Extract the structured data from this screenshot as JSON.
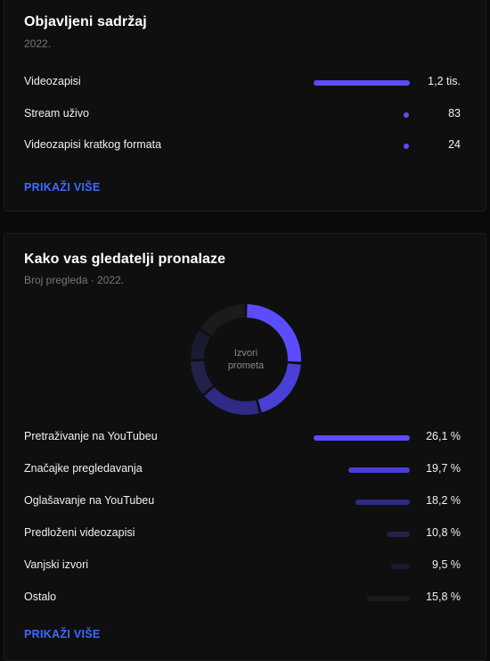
{
  "content_card": {
    "title": "Objavljeni sadržaj",
    "subtitle": "2022.",
    "items": [
      {
        "label": "Videozapisi",
        "value": "1,2 tis.",
        "fraction": 1.0
      },
      {
        "label": "Stream uživo",
        "value": "83",
        "fraction": 0.069
      },
      {
        "label": "Videozapisi kratkog formata",
        "value": "24",
        "fraction": 0.02
      }
    ],
    "show_more": "PRIKAŽI VIŠE"
  },
  "traffic_card": {
    "title": "Kako vas gledatelji pronalaze",
    "subtitle": "Broj pregleda · 2022.",
    "donut_center_line1": "Izvori",
    "donut_center_line2": "prometa",
    "items": [
      {
        "label": "Pretraživanje na YouTubeu",
        "value": "26,1 %",
        "percent": 26.1,
        "color": "#5b4cff"
      },
      {
        "label": "Značajke pregledavanja",
        "value": "19,7 %",
        "percent": 19.7,
        "color": "#4a3fd6"
      },
      {
        "label": "Oglašavanje na YouTubeu",
        "value": "18,2 %",
        "percent": 18.2,
        "color": "#2e2a86"
      },
      {
        "label": "Predloženi videozapisi",
        "value": "10,8 %",
        "percent": 10.8,
        "color": "#22214a"
      },
      {
        "label": "Vanjski izvori",
        "value": "9,5 %",
        "percent": 9.5,
        "color": "#1a1a30"
      },
      {
        "label": "Ostalo",
        "value": "15,8 %",
        "percent": 15.8,
        "color": "#1b1b1b"
      }
    ],
    "show_more": "PRIKAŽI VIŠE"
  },
  "chart_data": {
    "type": "pie",
    "categories": [
      "Pretraživanje na YouTubeu",
      "Značajke pregledavanja",
      "Oglašavanje na YouTubeu",
      "Predloženi videozapisi",
      "Vanjski izvori",
      "Ostalo"
    ],
    "values": [
      26.1,
      19.7,
      18.2,
      10.8,
      9.5,
      15.8
    ],
    "title": "Kako vas gledatelji pronalaze",
    "subtitle": "Broj pregleda · 2022.",
    "center_label": "Izvori prometa"
  }
}
